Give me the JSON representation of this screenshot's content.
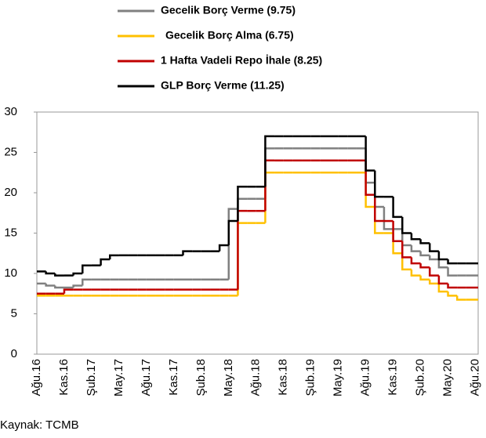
{
  "chart_data": {
    "type": "step-line",
    "categories": [
      "Ağu.16",
      null,
      null,
      "Kas.16",
      null,
      null,
      "Şub.17",
      null,
      null,
      "May.17",
      null,
      null,
      "Ağu.17",
      null,
      null,
      "Kas.17",
      null,
      null,
      "Şub.18",
      null,
      null,
      "May.18",
      null,
      null,
      "Ağu.18",
      null,
      null,
      "Kas.18",
      null,
      null,
      "Şub.19",
      null,
      null,
      "May.19",
      null,
      null,
      "Ağu.19",
      null,
      null,
      "Kas.19",
      null,
      null,
      "Şub.20",
      null,
      null,
      "May.20",
      null,
      null,
      "Ağu.20"
    ],
    "series": [
      {
        "name": "Gecelik Borç Verme (9.75)",
        "color": "#808080",
        "values": [
          8.75,
          8.5,
          8.25,
          8.25,
          8.5,
          9.25,
          9.25,
          9.25,
          9.25,
          9.25,
          9.25,
          9.25,
          9.25,
          9.25,
          9.25,
          9.25,
          9.25,
          9.25,
          9.25,
          9.25,
          9.25,
          18,
          19.25,
          19.25,
          19.25,
          25.5,
          25.5,
          25.5,
          25.5,
          25.5,
          25.5,
          25.5,
          25.5,
          25.5,
          25.5,
          25.5,
          21.25,
          18.25,
          15.5,
          15.5,
          13.5,
          12.75,
          12.25,
          11.75,
          10.75,
          9.75,
          9.75,
          9.75,
          9.75
        ]
      },
      {
        "name": "Gecelik Borç Alma (6.75)",
        "color": "#ffc000",
        "values": [
          7.25,
          7.25,
          7.25,
          7.25,
          7.25,
          7.25,
          7.25,
          7.25,
          7.25,
          7.25,
          7.25,
          7.25,
          7.25,
          7.25,
          7.25,
          7.25,
          7.25,
          7.25,
          7.25,
          7.25,
          7.25,
          7.25,
          16.25,
          16.25,
          16.25,
          22.5,
          22.5,
          22.5,
          22.5,
          22.5,
          22.5,
          22.5,
          22.5,
          22.5,
          22.5,
          22.5,
          18.25,
          15,
          15,
          12.5,
          10.5,
          9.75,
          9.25,
          8.75,
          7.75,
          7.25,
          6.75,
          6.75,
          6.75
        ]
      },
      {
        "name": "1 Hafta Vadeli Repo İhale (8.25)",
        "color": "#c00000",
        "values": [
          7.5,
          7.5,
          7.5,
          8,
          8,
          8,
          8,
          8,
          8,
          8,
          8,
          8,
          8,
          8,
          8,
          8,
          8,
          8,
          8,
          8,
          8,
          8,
          17.75,
          17.75,
          17.75,
          24,
          24,
          24,
          24,
          24,
          24,
          24,
          24,
          24,
          24,
          24,
          19.75,
          16.5,
          16.5,
          14,
          12,
          11.25,
          10.75,
          9.75,
          8.75,
          8.25,
          8.25,
          8.25,
          8.25
        ]
      },
      {
        "name": "GLP Borç Verme (11.25)",
        "color": "#000000",
        "values": [
          10.25,
          10,
          9.75,
          9.75,
          10,
          11,
          11,
          11.75,
          12.25,
          12.25,
          12.25,
          12.25,
          12.25,
          12.25,
          12.25,
          12.25,
          12.75,
          12.75,
          12.75,
          12.75,
          13.5,
          16.5,
          20.75,
          20.75,
          20.75,
          27,
          27,
          27,
          27,
          27,
          27,
          27,
          27,
          27,
          27,
          27,
          22.75,
          19.5,
          19.5,
          17,
          15,
          14.25,
          13.75,
          12.75,
          11.75,
          11.25,
          11.25,
          11.25,
          11.25
        ]
      }
    ],
    "ylim": [
      0,
      30
    ],
    "yticks": [
      0,
      5,
      10,
      15,
      20,
      25,
      30
    ],
    "grid": false,
    "source": "Kaynak: TCMB"
  }
}
